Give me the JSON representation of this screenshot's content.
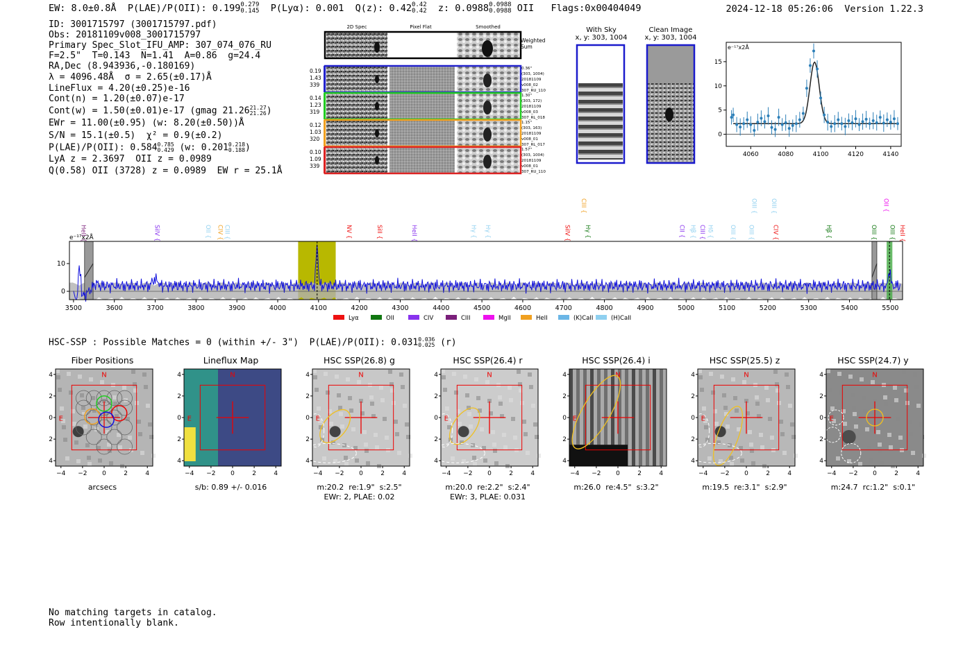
{
  "header": {
    "ew": "EW: 8.0±0.8Å",
    "plae_label": "P(LAE)/P(OII): 0.199",
    "plae_hi": "0.279",
    "plae_lo": "0.145",
    "plya": "P(Lyα): 0.001",
    "qz_label": "Q(z): 0.42",
    "qz_hi": "0.42",
    "qz_lo": "0.42",
    "z_label": "z: 0.0988",
    "z_hi": "0.0988",
    "z_lo": "0.0988",
    "z_line": "OII",
    "flags": "Flags:0x00404049",
    "timestamp": "2024-12-18 05:26:06",
    "version": "Version 1.22.3"
  },
  "info": {
    "l1": "ID: 3001715797 (3001715797.pdf)",
    "l2": "Obs: 20181109v008_3001715797",
    "l3": "Primary Spec_Slot_IFU_AMP: 307_074_076_RU",
    "l4": "F=2.5\"  T=0.143  N=1.41  A=0.86  g=24.4",
    "l5": "RA,Dec (8.943936,-0.180169)",
    "l6": "λ = 4096.48Å  σ = 2.65(±0.17)Å",
    "l7": "LineFlux = 4.20(±0.25)e-16",
    "l8": "Cont(n) = 1.20(±0.07)e-17",
    "l9": "Cont(w) = 1.50(±0.01)e-17 (gmag 21.26",
    "l9_hi": "21.27",
    "l9_lo": "21.26",
    "l9_end": ")",
    "l10": "EWr = 11.00(±0.95) (w: 8.20(±0.50))Å",
    "l11": "S/N = 15.1(±0.5)  χ² = 0.9(±0.2)",
    "l12": "P(LAE)/P(OII): 0.584",
    "l12_hi": "0.785",
    "l12_lo": "0.429",
    "l12_mid": "(w: 0.201",
    "l12_hi2": "0.218",
    "l12_lo2": "0.188",
    "l12_end": ")",
    "l13": "LyA z = 2.3697  OII z = 0.0989",
    "l14": "Q(0.58) OII (3728) z = 0.0989  EW r = 25.1Å"
  },
  "cutouts": {
    "col_titles": [
      "2D Spec",
      "Pixel Flat",
      "Smoothed"
    ],
    "weighted_sum": "Weighted\nSum",
    "rows": [
      {
        "color": "#2222cc",
        "left": [
          "0.19",
          "1.43",
          "339"
        ],
        "right": [
          "0.36\"",
          "(303, 1004)",
          "20181109",
          "v008_02",
          "307_RU_110"
        ]
      },
      {
        "color": "#22cc22",
        "left": [
          "0.14",
          "1.23",
          "319"
        ],
        "right": [
          "1.30\"",
          "(303, 172)",
          "20181109",
          "v008_03",
          "307_RL_018"
        ]
      },
      {
        "color": "#f0a020",
        "left": [
          "0.12",
          "1.03",
          "320"
        ],
        "right": [
          "1.15\"",
          "(303, 163)",
          "20181109",
          "v008_01",
          "307_RL_017"
        ]
      },
      {
        "color": "#dd2222",
        "left": [
          "0.10",
          "1.09",
          "339"
        ],
        "right": [
          "1.57\"",
          "(303, 1004)",
          "20181109",
          "v008_01",
          "307_RU_110"
        ]
      }
    ],
    "with_sky_title": "With Sky",
    "with_sky_sub": "x, y: 303, 1004",
    "clean_title": "Clean Image",
    "clean_sub": "x, y: 303, 1004"
  },
  "fit_chart": {
    "type": "scatter",
    "ylabel": "e⁻¹⁷x2Å",
    "xlim": [
      4046,
      4146
    ],
    "ylim": [
      -2.5,
      19
    ],
    "xticks": [
      4060,
      4080,
      4100,
      4120,
      4140
    ],
    "yticks": [
      0,
      5,
      10,
      15
    ],
    "model": {
      "center": 4096.5,
      "sigma": 2.65,
      "amp": 12.7,
      "cont": 2.2
    },
    "points": [
      [
        4049,
        3.5
      ],
      [
        4050,
        4.0
      ],
      [
        4052,
        2.0
      ],
      [
        4054,
        1.5
      ],
      [
        4056,
        2.2
      ],
      [
        4058,
        3.0
      ],
      [
        4060,
        2.0
      ],
      [
        4062,
        0.8
      ],
      [
        4064,
        2.5
      ],
      [
        4066,
        3.3
      ],
      [
        4068,
        2.6
      ],
      [
        4070,
        3.8
      ],
      [
        4072,
        1.4
      ],
      [
        4074,
        1.0
      ],
      [
        4076,
        3.5
      ],
      [
        4078,
        2.0
      ],
      [
        4080,
        2.4
      ],
      [
        4082,
        1.2
      ],
      [
        4084,
        1.8
      ],
      [
        4086,
        2.2
      ],
      [
        4088,
        3.0
      ],
      [
        4090,
        4.3
      ],
      [
        4092,
        9.5
      ],
      [
        4094,
        14.2
      ],
      [
        4096,
        17.2
      ],
      [
        4098,
        13.5
      ],
      [
        4100,
        7.5
      ],
      [
        4102,
        4.0
      ],
      [
        4104,
        2.5
      ],
      [
        4106,
        1.6
      ],
      [
        4108,
        2.2
      ],
      [
        4110,
        3.0
      ],
      [
        4112,
        2.2
      ],
      [
        4114,
        1.6
      ],
      [
        4116,
        2.8
      ],
      [
        4118,
        2.4
      ],
      [
        4120,
        3.2
      ],
      [
        4122,
        2.0
      ],
      [
        4124,
        2.6
      ],
      [
        4126,
        3.1
      ],
      [
        4128,
        2.2
      ],
      [
        4130,
        2.8
      ],
      [
        4132,
        2.4
      ],
      [
        4134,
        3.5
      ],
      [
        4136,
        2.3
      ],
      [
        4138,
        3.0
      ],
      [
        4140,
        2.5
      ],
      [
        4142,
        3.2
      ],
      [
        4144,
        2.2
      ]
    ]
  },
  "spectrum": {
    "type": "line",
    "ylabel": "e⁻¹⁷x2Å",
    "xlim": [
      3490,
      5530
    ],
    "ylim": [
      -3,
      18
    ],
    "xticks": [
      3500,
      3600,
      3700,
      3800,
      3900,
      4000,
      4100,
      4200,
      4300,
      4400,
      4500,
      4600,
      4700,
      4800,
      4900,
      5000,
      5100,
      5200,
      5300,
      5400,
      5500
    ],
    "yticks": [
      0,
      10
    ],
    "highlight": [
      4050,
      4142
    ],
    "peak": 4096.5,
    "bad_regions": [
      [
        3527,
        3548
      ],
      [
        5455,
        5467
      ]
    ],
    "oii_region": [
      5491,
      5505
    ],
    "legend": [
      {
        "name": "Lyα",
        "color": "#ee1111"
      },
      {
        "name": "OII",
        "color": "#117711"
      },
      {
        "name": "CIV",
        "color": "#8833ee"
      },
      {
        "name": "CIII",
        "color": "#7a1f7a"
      },
      {
        "name": "MgII",
        "color": "#ee11ee"
      },
      {
        "name": "HeII",
        "color": "#f0a020"
      },
      {
        "name": "(K)CaII",
        "color": "#6bb6e6"
      },
      {
        "name": "(H)CaII",
        "color": "#8fd0f0"
      }
    ],
    "lines": [
      {
        "label": "HeII",
        "x": 3520,
        "color": "#7a1f7a",
        "row": 0
      },
      {
        "label": "SiIV",
        "x": 3700,
        "color": "#8833ee",
        "row": 0
      },
      {
        "label": "OII",
        "x": 3825,
        "color": "#8fd0f0",
        "row": 0
      },
      {
        "label": "CIV",
        "x": 3855,
        "color": "#f0a020",
        "row": 0
      },
      {
        "label": "CIII",
        "x": 3872,
        "color": "#8fd0f0",
        "row": 0
      },
      {
        "label": "NV",
        "x": 4170,
        "color": "#ee1111",
        "row": 0
      },
      {
        "label": "SiII",
        "x": 4245,
        "color": "#ee1111",
        "row": 0
      },
      {
        "label": "HeII",
        "x": 4330,
        "color": "#8833ee",
        "row": 0
      },
      {
        "label": "Hγ",
        "x": 4475,
        "color": "#8fd0f0",
        "row": 0
      },
      {
        "label": "Hγ",
        "x": 4510,
        "color": "#8fd0f0",
        "row": 0
      },
      {
        "label": "SiIV",
        "x": 4705,
        "color": "#ee1111",
        "row": 0
      },
      {
        "label": "CIII",
        "x": 4745,
        "color": "#f0a020",
        "row": 1
      },
      {
        "label": "Hγ",
        "x": 4755,
        "color": "#117711",
        "row": 0
      },
      {
        "label": "CII",
        "x": 4985,
        "color": "#8833ee",
        "row": 0
      },
      {
        "label": "Hβ",
        "x": 5012,
        "color": "#8fd0f0",
        "row": 0
      },
      {
        "label": "CIII",
        "x": 5035,
        "color": "#8833ee",
        "row": 0
      },
      {
        "label": "Hδ",
        "x": 5055,
        "color": "#8fd0f0",
        "row": 0
      },
      {
        "label": "OIII",
        "x": 5110,
        "color": "#8fd0f0",
        "row": 0
      },
      {
        "label": "OIII",
        "x": 5155,
        "color": "#8fd0f0",
        "row": 0
      },
      {
        "label": "OIII",
        "x": 5162,
        "color": "#8fd0f0",
        "row": 1
      },
      {
        "label": "OIII",
        "x": 5210,
        "color": "#8fd0f0",
        "row": 1
      },
      {
        "label": "CIV",
        "x": 5215,
        "color": "#ee1111",
        "row": 0
      },
      {
        "label": "Hβ",
        "x": 5345,
        "color": "#117711",
        "row": 0
      },
      {
        "label": "OIII",
        "x": 5455,
        "color": "#117711",
        "row": 0
      },
      {
        "label": "OII",
        "x": 5485,
        "color": "#ee11ee",
        "row": 1
      },
      {
        "label": "OIII",
        "x": 5500,
        "color": "#117711",
        "row": 0
      },
      {
        "label": "HeII",
        "x": 5525,
        "color": "#ee1111",
        "row": 0
      }
    ]
  },
  "hsc": {
    "summary": "HSC-SSP : Possible Matches = 0 (within +/- 3\")  P(LAE)/P(OII): 0.031",
    "summary_hi": "0.036",
    "summary_lo": "0.025",
    "summary_end": "(r)",
    "panels": [
      {
        "title": "Fiber Positions",
        "cap1": "arcsecs",
        "cap2": ""
      },
      {
        "title": "Lineflux Map",
        "cap1": "s/b: 0.89 +/- 0.016",
        "cap2": ""
      },
      {
        "title": "HSC SSP(26.8) g",
        "cap1": "m:20.2  re:1.9\"  s:2.5\"",
        "cap2": "EWr: 2, PLAE: 0.02"
      },
      {
        "title": "HSC SSP(26.4) r",
        "cap1": "m:20.0  re:2.2\"  s:2.4\"",
        "cap2": "EWr: 3, PLAE: 0.031"
      },
      {
        "title": "HSC SSP(26.4) i",
        "cap1": "m:26.0  re:4.5\"  s:3.2\"",
        "cap2": ""
      },
      {
        "title": "HSC SSP(25.5) z",
        "cap1": "m:19.5  re:3.1\"  s:2.9\"",
        "cap2": ""
      },
      {
        "title": "HSC SSP(24.7) y",
        "cap1": "m:24.7  rc:1.2\"  s:0.1\"",
        "cap2": ""
      }
    ],
    "ticks": [
      "−4",
      "−2",
      "0",
      "2",
      "4"
    ],
    "north": "N",
    "east": "E"
  },
  "footer": {
    "l1": "No matching targets in catalog.",
    "l2": "Row intentionally blank."
  }
}
